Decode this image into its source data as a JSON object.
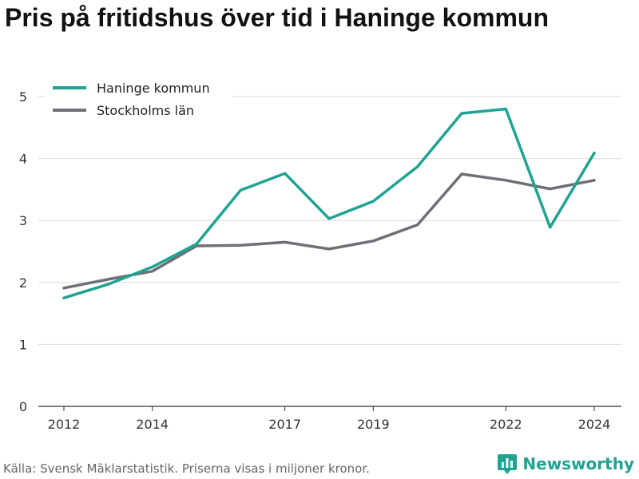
{
  "title": "Pris på fritidshus över tid i Haninge kommun",
  "source": "Källa: Svensk Mäklarstatistik. Priserna visas i miljoner kronor.",
  "brand": "Newsworthy",
  "colors": {
    "haninge": "#1fa393",
    "stockholm": "#6f6f78",
    "grid": "#dcdcdc",
    "axis": "#333333",
    "brand": "#1fa393"
  },
  "chart_data": {
    "type": "line",
    "title": "Pris på fritidshus över tid i Haninge kommun",
    "xlabel": "",
    "ylabel": "",
    "x": [
      2012,
      2013,
      2014,
      2015,
      2016,
      2017,
      2018,
      2019,
      2020,
      2021,
      2022,
      2023,
      2024
    ],
    "x_ticks": [
      2012,
      2014,
      2017,
      2019,
      2022,
      2024
    ],
    "y_ticks": [
      0,
      1,
      2,
      3,
      4,
      5
    ],
    "ylim": [
      0,
      5
    ],
    "xlim": [
      2012,
      2024
    ],
    "grid": true,
    "legend_position": "top-left",
    "series": [
      {
        "name": "Haninge kommun",
        "color": "#1fa393",
        "values": [
          1.75,
          1.97,
          2.25,
          2.62,
          3.49,
          3.76,
          3.03,
          3.31,
          3.87,
          4.73,
          4.8,
          2.89,
          4.09
        ]
      },
      {
        "name": "Stockholms län",
        "color": "#6f6f78",
        "values": [
          1.91,
          2.05,
          2.18,
          2.59,
          2.6,
          2.65,
          2.54,
          2.67,
          2.93,
          3.75,
          3.65,
          3.51,
          3.65
        ]
      }
    ]
  }
}
